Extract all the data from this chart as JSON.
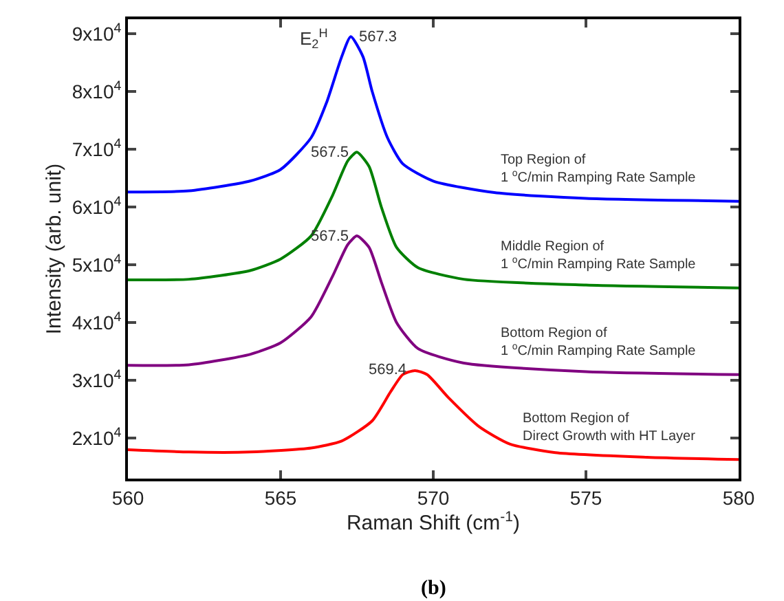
{
  "chart_data": {
    "type": "line",
    "xlabel": "Raman Shift (cm$^{-1}$)",
    "ylabel": "Intensity (arb. unit)",
    "xlim": [
      560,
      580
    ],
    "xticks": [
      560,
      565,
      570,
      575,
      580
    ],
    "ylim": [
      13000,
      92500
    ],
    "yticks": [
      {
        "value": 20000,
        "label": "2x10$^{4}$"
      },
      {
        "value": 30000,
        "label": "3x10$^{4}$"
      },
      {
        "value": 40000,
        "label": "4x10$^{4}$"
      },
      {
        "value": 50000,
        "label": "5x10$^{4}$"
      },
      {
        "value": 60000,
        "label": "6x10$^{4}$"
      },
      {
        "value": 70000,
        "label": "7x10$^{4}$"
      },
      {
        "value": 80000,
        "label": "8x10$^{4}$"
      },
      {
        "value": 90000,
        "label": "9x10$^{4}$"
      }
    ],
    "legend": false,
    "marker": "none",
    "line_style": "solid",
    "series": [
      {
        "name": "Top Region of\n1 $^{o}$C/min Ramping Rate Sample",
        "color": "#0000ff",
        "x": [
          560,
          562,
          564,
          565,
          566,
          566.5,
          567,
          567.3,
          567.7,
          568,
          568.5,
          569,
          570,
          572,
          575,
          580
        ],
        "values": [
          62600,
          62800,
          64500,
          66500,
          72000,
          78000,
          86000,
          89500,
          86000,
          80000,
          72000,
          67500,
          64500,
          62500,
          61500,
          61000
        ]
      },
      {
        "name": "Middle Region of\n1 $^{o}$C/min Ramping Rate Sample",
        "color": "#008000",
        "x": [
          560,
          562,
          564,
          565,
          566,
          566.7,
          567.2,
          567.5,
          567.9,
          568.3,
          568.8,
          569.5,
          571,
          575,
          580
        ],
        "values": [
          47400,
          47500,
          49000,
          51000,
          55000,
          62000,
          68000,
          69500,
          67000,
          60000,
          53000,
          49500,
          47500,
          46500,
          46000
        ]
      },
      {
        "name": "Bottom Region of\n1 $^{o}$C/min Ramping Rate Sample",
        "color": "#800080",
        "x": [
          560,
          562,
          564,
          565,
          566,
          566.7,
          567.2,
          567.5,
          567.9,
          568.3,
          568.8,
          569.5,
          571,
          575,
          580
        ],
        "values": [
          32600,
          32700,
          34500,
          36500,
          41000,
          48000,
          53500,
          55000,
          53000,
          47000,
          40000,
          35500,
          33000,
          31500,
          31000
        ]
      },
      {
        "name": "Bottom Region of\nDirect Growth with HT Layer",
        "color": "#ff0000",
        "x": [
          560,
          562,
          564,
          566,
          567,
          568,
          568.6,
          569,
          569.4,
          569.8,
          570.5,
          571.5,
          572.5,
          574,
          577,
          580
        ],
        "values": [
          18000,
          17600,
          17600,
          18300,
          19500,
          23000,
          28000,
          31000,
          31700,
          31000,
          27000,
          22000,
          19000,
          17500,
          16700,
          16300
        ]
      }
    ],
    "annotations": [
      "E$_{2}$$^{H}$",
      {
        "text": "567.3",
        "x": 567.3,
        "y": 89500
      },
      {
        "text": "567.5",
        "x": 567.5,
        "y": 69500
      },
      {
        "text": "567.5",
        "x": 567.5,
        "y": 55000
      },
      {
        "text": "569.4",
        "x": 569.4,
        "y": 31700
      },
      "(b)"
    ]
  }
}
